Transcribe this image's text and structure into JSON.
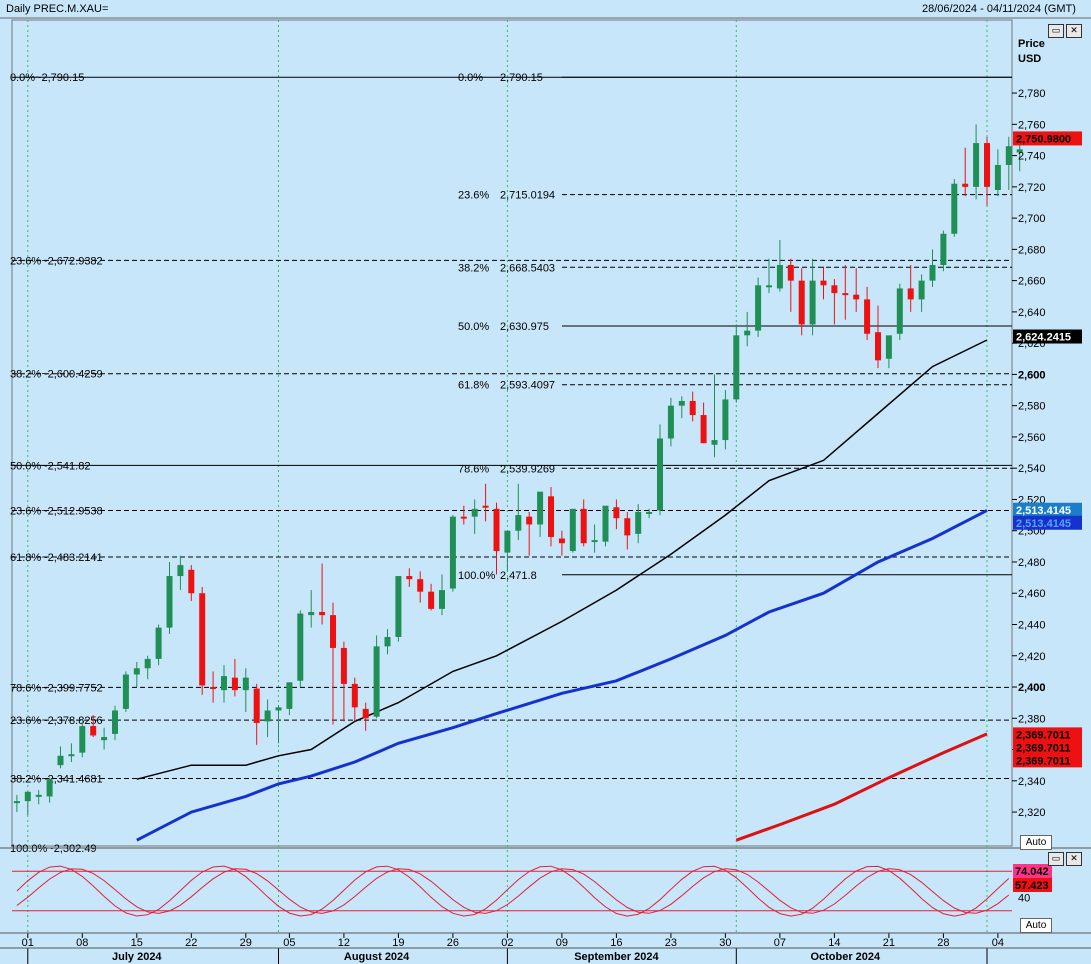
{
  "header": {
    "title": "Daily PREC.M.XAU=",
    "date_range": "28/06/2024 - 04/11/2024 (GMT)",
    "price_label": "Price",
    "currency_label": "USD",
    "auto_label": "Auto"
  },
  "colors": {
    "bull": "#1f8f55",
    "bear": "#ee1111",
    "ma_black": "#000000",
    "ma_blue": "#1533cc",
    "ma_red": "#dd1111",
    "stoch_line": "#e0203a",
    "background": "#c8e6fa"
  },
  "chart_data": {
    "type": "candlestick",
    "y_range": [
      2300,
      2797
    ],
    "y_ticks": [
      2320,
      2340,
      2360,
      2380,
      2400,
      2420,
      2440,
      2460,
      2480,
      2500,
      2520,
      2540,
      2560,
      2580,
      2600,
      2620,
      2640,
      2660,
      2680,
      2700,
      2720,
      2740,
      2760,
      2780
    ],
    "y_tick_labels": [
      "2,320",
      "2,340",
      "2,360",
      "2,380",
      "2,400",
      "2,420",
      "2,440",
      "2,460",
      "2,480",
      "2,500",
      "2,520",
      "2,540",
      "2,560",
      "2,580",
      "2,600",
      "2,620",
      "2,640",
      "2,660",
      "2,680",
      "2,700",
      "2,720",
      "2,740",
      "2,760",
      "2,780"
    ],
    "x_ticks": [
      {
        "i": 1,
        "label": "01"
      },
      {
        "i": 6,
        "label": "08"
      },
      {
        "i": 11,
        "label": "15"
      },
      {
        "i": 16,
        "label": "22"
      },
      {
        "i": 21,
        "label": "29"
      },
      {
        "i": 25,
        "label": "05"
      },
      {
        "i": 30,
        "label": "12"
      },
      {
        "i": 35,
        "label": "19"
      },
      {
        "i": 40,
        "label": "26"
      },
      {
        "i": 45,
        "label": "02"
      },
      {
        "i": 50,
        "label": "09"
      },
      {
        "i": 55,
        "label": "16"
      },
      {
        "i": 60,
        "label": "23"
      },
      {
        "i": 65,
        "label": "30"
      },
      {
        "i": 70,
        "label": "07"
      },
      {
        "i": 75,
        "label": "14"
      },
      {
        "i": 80,
        "label": "21"
      },
      {
        "i": 85,
        "label": "28"
      },
      {
        "i": 90,
        "label": "04"
      }
    ],
    "months": [
      {
        "label": "July 2024",
        "i": 11
      },
      {
        "label": "August 2024",
        "i": 33
      },
      {
        "label": "September 2024",
        "i": 55
      },
      {
        "label": "October 2024",
        "i": 76
      }
    ],
    "month_starts": [
      1,
      24,
      45,
      66,
      89
    ],
    "candles": [
      [
        2327,
        2331,
        2320,
        2327
      ],
      [
        2327,
        2330,
        2318,
        2333
      ],
      [
        2331,
        2334,
        2325,
        2331
      ],
      [
        2330,
        2342,
        2326,
        2341
      ],
      [
        2350,
        2362,
        2348,
        2356
      ],
      [
        2356,
        2364,
        2352,
        2357
      ],
      [
        2358,
        2378,
        2355,
        2375
      ],
      [
        2375,
        2382,
        2368,
        2369
      ],
      [
        2366,
        2374,
        2360,
        2368
      ],
      [
        2370,
        2388,
        2366,
        2385
      ],
      [
        2386,
        2410,
        2384,
        2408
      ],
      [
        2408,
        2416,
        2400,
        2412
      ],
      [
        2412,
        2420,
        2405,
        2418
      ],
      [
        2418,
        2440,
        2414,
        2438
      ],
      [
        2438,
        2480,
        2434,
        2471
      ],
      [
        2471,
        2484,
        2462,
        2478
      ],
      [
        2475,
        2478,
        2455,
        2460
      ],
      [
        2460,
        2464,
        2395,
        2401
      ],
      [
        2400,
        2410,
        2390,
        2399
      ],
      [
        2398,
        2414,
        2390,
        2407
      ],
      [
        2406,
        2418,
        2394,
        2398
      ],
      [
        2398,
        2412,
        2384,
        2406
      ],
      [
        2399,
        2402,
        2363,
        2377
      ],
      [
        2378,
        2392,
        2368,
        2385
      ],
      [
        2385,
        2388,
        2364,
        2387
      ],
      [
        2386,
        2403,
        2382,
        2403
      ],
      [
        2404,
        2449,
        2400,
        2447
      ],
      [
        2446,
        2462,
        2438,
        2448
      ],
      [
        2448,
        2479,
        2440,
        2446
      ],
      [
        2446,
        2454,
        2376,
        2425
      ],
      [
        2425,
        2429,
        2378,
        2402
      ],
      [
        2402,
        2406,
        2378,
        2387
      ],
      [
        2386,
        2390,
        2372,
        2380
      ],
      [
        2381,
        2433,
        2380,
        2426
      ],
      [
        2426,
        2437,
        2421,
        2432
      ],
      [
        2432,
        2470,
        2429,
        2471
      ],
      [
        2471,
        2476,
        2464,
        2469
      ],
      [
        2469,
        2474,
        2454,
        2461
      ],
      [
        2461,
        2466,
        2449,
        2450
      ],
      [
        2450,
        2472,
        2446,
        2462
      ],
      [
        2463,
        2510,
        2461,
        2509
      ],
      [
        2509,
        2516,
        2504,
        2508
      ],
      [
        2509,
        2520,
        2498,
        2514
      ],
      [
        2516,
        2530,
        2506,
        2515
      ],
      [
        2514,
        2518,
        2472,
        2487
      ],
      [
        2486,
        2500,
        2474,
        2500
      ],
      [
        2500,
        2530,
        2494,
        2510
      ],
      [
        2509,
        2512,
        2484,
        2504
      ],
      [
        2504,
        2524,
        2496,
        2525
      ],
      [
        2522,
        2528,
        2490,
        2496
      ],
      [
        2495,
        2500,
        2484,
        2492
      ],
      [
        2487,
        2510,
        2486,
        2514
      ],
      [
        2514,
        2520,
        2490,
        2492
      ],
      [
        2493,
        2504,
        2486,
        2494
      ],
      [
        2493,
        2513,
        2490,
        2516
      ],
      [
        2515,
        2520,
        2501,
        2508
      ],
      [
        2508,
        2512,
        2488,
        2497
      ],
      [
        2498,
        2517,
        2492,
        2512
      ],
      [
        2511,
        2514,
        2508,
        2512
      ],
      [
        2513,
        2568,
        2510,
        2559
      ],
      [
        2559,
        2585,
        2554,
        2580
      ],
      [
        2580,
        2586,
        2572,
        2583
      ],
      [
        2583,
        2589,
        2570,
        2574
      ],
      [
        2574,
        2582,
        2556,
        2556
      ],
      [
        2555,
        2600,
        2547,
        2558
      ],
      [
        2558,
        2590,
        2552,
        2584
      ],
      [
        2584,
        2632,
        2582,
        2625
      ],
      [
        2625,
        2640,
        2618,
        2628
      ],
      [
        2628,
        2662,
        2624,
        2657
      ],
      [
        2657,
        2674,
        2652,
        2657
      ],
      [
        2655,
        2686,
        2653,
        2670
      ],
      [
        2670,
        2674,
        2640,
        2660
      ],
      [
        2660,
        2668,
        2625,
        2632
      ],
      [
        2632,
        2674,
        2625,
        2660
      ],
      [
        2660,
        2669,
        2648,
        2657
      ],
      [
        2657,
        2661,
        2632,
        2652
      ],
      [
        2652,
        2670,
        2635,
        2651
      ],
      [
        2651,
        2668,
        2640,
        2648
      ],
      [
        2648,
        2656,
        2622,
        2626
      ],
      [
        2627,
        2644,
        2604,
        2609
      ],
      [
        2610,
        2624,
        2604,
        2625
      ],
      [
        2626,
        2658,
        2622,
        2655
      ],
      [
        2655,
        2670,
        2640,
        2648
      ],
      [
        2648,
        2664,
        2640,
        2660
      ],
      [
        2660,
        2680,
        2656,
        2670
      ],
      [
        2670,
        2692,
        2666,
        2690
      ],
      [
        2690,
        2725,
        2688,
        2722
      ],
      [
        2722,
        2745,
        2714,
        2720
      ],
      [
        2720,
        2760,
        2712,
        2748
      ],
      [
        2748,
        2752,
        2708,
        2720
      ],
      [
        2718,
        2744,
        2714,
        2734
      ],
      [
        2734,
        2752,
        2718,
        2746
      ],
      [
        2742,
        2755,
        2730,
        2744
      ]
    ],
    "ma_black": {
      "points": [
        [
          11,
          2341
        ],
        [
          16,
          2350
        ],
        [
          21,
          2350
        ],
        [
          24,
          2356
        ],
        [
          27,
          2360
        ],
        [
          31,
          2378
        ],
        [
          35,
          2390
        ],
        [
          40,
          2410
        ],
        [
          44,
          2420
        ],
        [
          50,
          2442
        ],
        [
          55,
          2462
        ],
        [
          60,
          2485
        ],
        [
          65,
          2510
        ],
        [
          69,
          2532
        ],
        [
          74,
          2545
        ],
        [
          79,
          2575
        ],
        [
          84,
          2605
        ],
        [
          89,
          2622
        ]
      ],
      "last_label": "2,624.2415"
    },
    "ma_blue": {
      "points": [
        [
          11,
          2302
        ],
        [
          16,
          2320
        ],
        [
          21,
          2330
        ],
        [
          24,
          2338
        ],
        [
          27,
          2343
        ],
        [
          31,
          2352
        ],
        [
          35,
          2364
        ],
        [
          40,
          2374
        ],
        [
          44,
          2383
        ],
        [
          50,
          2396
        ],
        [
          55,
          2404
        ],
        [
          60,
          2418
        ],
        [
          65,
          2433
        ],
        [
          69,
          2448
        ],
        [
          74,
          2460
        ],
        [
          79,
          2480
        ],
        [
          84,
          2495
        ],
        [
          89,
          2513
        ]
      ],
      "last_label": "2,513.4145",
      "second_label": "2,513.4145"
    },
    "ma_red": {
      "points": [
        [
          66,
          2302
        ],
        [
          70,
          2312
        ],
        [
          75,
          2325
        ],
        [
          80,
          2342
        ],
        [
          85,
          2358
        ],
        [
          89,
          2370
        ]
      ],
      "labels": [
        "2,369.7011",
        "2,369.7011",
        "2,369.7011"
      ]
    },
    "last_price_label": "2,750.9800",
    "bold_labels": [
      {
        "value": 2600,
        "label": "2,600"
      },
      {
        "value": 2400,
        "label": "2,400"
      }
    ],
    "fib_left": {
      "levels": [
        {
          "pct": "0.0%",
          "value": "2,790.15",
          "y": 2790.15,
          "style": "solid"
        },
        {
          "pct": "23.6%",
          "value": "2,672.9382",
          "y": 2672.94,
          "style": "dashed"
        },
        {
          "pct": "38.2%",
          "value": "2,600.4259",
          "y": 2600.43,
          "style": "dashed"
        },
        {
          "pct": "50.0%",
          "value": "2,541.82",
          "y": 2541.82,
          "style": "solid"
        },
        {
          "pct": "23.6%",
          "value": "2,512.9538",
          "y": 2512.95,
          "style": "dashed"
        },
        {
          "pct": "61.8%",
          "value": "2,483.2141",
          "y": 2483.21,
          "style": "dashed"
        },
        {
          "pct": "78.6%",
          "value": "2,399.7752",
          "y": 2399.78,
          "style": "dashed"
        },
        {
          "pct": "23.6%",
          "value": "2,378.8256",
          "y": 2378.83,
          "style": "dashed"
        },
        {
          "pct": "38.2%",
          "value": "2,341.4681",
          "y": 2341.47,
          "style": "dashed"
        }
      ],
      "truncated_label": "100.0%~2,302.49"
    },
    "fib_right": {
      "levels": [
        {
          "pct": "0.0%",
          "value": "2,790.15",
          "y": 2790.15,
          "style": "solid"
        },
        {
          "pct": "23.6%",
          "value": "2,715.0194",
          "y": 2715.02,
          "style": "dashed"
        },
        {
          "pct": "38.2%",
          "value": "2,668.5403",
          "y": 2668.54,
          "style": "dashed"
        },
        {
          "pct": "50.0%",
          "value": "2,630.975",
          "y": 2630.98,
          "style": "solid"
        },
        {
          "pct": "61.8%",
          "value": "2,593.4097",
          "y": 2593.41,
          "style": "dashed"
        },
        {
          "pct": "78.6%",
          "value": "2,539.9269",
          "y": 2539.93,
          "style": "dashed"
        },
        {
          "pct": "100.0%",
          "value": "2,471.8",
          "y": 2471.8,
          "style": "solid"
        }
      ]
    },
    "oscillator": {
      "upper_level": 80,
      "lower_level": 20,
      "tick_label": "40",
      "value_labels": [
        "74.042",
        "57.423"
      ]
    }
  }
}
